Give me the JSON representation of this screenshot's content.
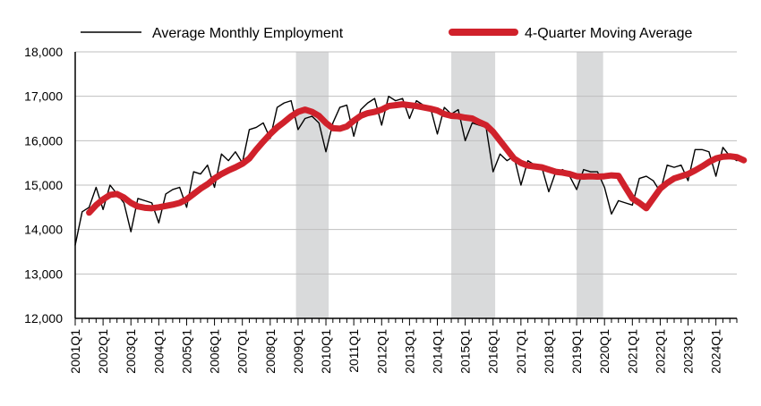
{
  "chart_data": {
    "type": "line",
    "title": "",
    "xlabel": "",
    "ylabel": "",
    "ylim": [
      12000,
      18000
    ],
    "yticks": [
      "12,000",
      "13,000",
      "14,000",
      "15,000",
      "16,000",
      "17,000",
      "18,000"
    ],
    "ytick_values": [
      12000,
      13000,
      14000,
      15000,
      16000,
      17000,
      18000
    ],
    "xticks": [
      "2001Q1",
      "2002Q1",
      "2003Q1",
      "2004Q1",
      "2005Q1",
      "2006Q1",
      "2007Q1",
      "2008Q1",
      "2009Q1",
      "2010Q1",
      "2011Q1",
      "2012Q1",
      "2013Q1",
      "2014Q1",
      "2015Q1",
      "2016Q1",
      "2017Q1",
      "2018Q1",
      "2019Q1",
      "2020Q1",
      "2021Q1",
      "2022Q1",
      "2023Q1",
      "2024Q1"
    ],
    "grid": true,
    "legend_position": "top",
    "legend": {
      "monthly_label": "Average Monthly Employment",
      "ma_label": "4-Quarter Moving Average"
    },
    "colors": {
      "monthly": "#000000",
      "moving_average": "#d0212b",
      "recession": "#d9dadb",
      "grid": "#bfbfbf"
    },
    "recession_shading": [
      {
        "start": 31.7,
        "end": 36.4
      },
      {
        "start": 54.0,
        "end": 60.3
      },
      {
        "start": 72.0,
        "end": 75.8
      }
    ],
    "series": [
      {
        "name": "Average Monthly Employment",
        "start_index": 0,
        "values": [
          13650,
          14400,
          14500,
          14950,
          14450,
          15000,
          14800,
          14600,
          13950,
          14700,
          14650,
          14600,
          14150,
          14800,
          14900,
          14950,
          14500,
          15300,
          15250,
          15450,
          14950,
          15700,
          15550,
          15750,
          15500,
          16250,
          16300,
          16400,
          16050,
          16750,
          16850,
          16900,
          16250,
          16500,
          16550,
          16400,
          15750,
          16400,
          16750,
          16800,
          16100,
          16700,
          16850,
          16950,
          16350,
          17000,
          16900,
          16950,
          16500,
          16900,
          16800,
          16750,
          16150,
          16750,
          16600,
          16700,
          16000,
          16400,
          16350,
          16300,
          15300,
          15700,
          15550,
          15650,
          15000,
          15550,
          15450,
          15400,
          14850,
          15300,
          15350,
          15200,
          14900,
          15350,
          15300,
          15300,
          14950,
          14350,
          14650,
          14600,
          14550,
          15150,
          15200,
          15100,
          14850,
          15450,
          15400,
          15450,
          15100,
          15800,
          15800,
          15750,
          15200,
          15850,
          15650,
          15550
        ]
      },
      {
        "name": "4-Quarter Moving Average",
        "start_index": 2,
        "values": [
          14380,
          14550,
          14680,
          14780,
          14800,
          14720,
          14600,
          14520,
          14490,
          14480,
          14500,
          14530,
          14560,
          14600,
          14680,
          14800,
          14920,
          15020,
          15150,
          15250,
          15330,
          15400,
          15480,
          15600,
          15800,
          15980,
          16150,
          16300,
          16420,
          16550,
          16650,
          16700,
          16650,
          16560,
          16400,
          16280,
          16270,
          16320,
          16450,
          16560,
          16620,
          16650,
          16700,
          16780,
          16800,
          16820,
          16800,
          16780,
          16750,
          16720,
          16680,
          16600,
          16560,
          16550,
          16520,
          16500,
          16420,
          16350,
          16200,
          16000,
          15800,
          15600,
          15500,
          15440,
          15420,
          15400,
          15350,
          15300,
          15280,
          15250,
          15200,
          15190,
          15200,
          15190,
          15200,
          15220,
          15210,
          14950,
          14700,
          14600,
          14480,
          14700,
          14920,
          15050,
          15150,
          15200,
          15250,
          15330,
          15420,
          15520,
          15600,
          15640,
          15650,
          15630,
          15560
        ]
      }
    ]
  }
}
